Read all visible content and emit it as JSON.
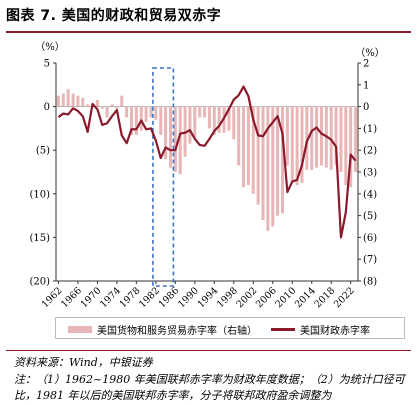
{
  "title": "图表 7. 美国的财政和贸易双赤字",
  "source": "资料来源：Wind，中银证券",
  "note": "注：（1）1962~1980 年美国联邦赤字率为财政年度数据；（2）为统计口径可比，1981 年以后的美国联邦赤字率，分子将联邦政府盈余调整为",
  "colors": {
    "bars": "#e8b6b6",
    "line": "#8b1a2b",
    "highlight": "#3d73c4",
    "rule": "#8b1a2b"
  },
  "chart_data": {
    "type": "bar+line",
    "left_axis": {
      "unit_label": "（%）",
      "ylim": [
        -20,
        5
      ],
      "ticks": [
        "5",
        "0",
        "(5)",
        "(10)",
        "(15)",
        "(20)"
      ]
    },
    "right_axis": {
      "unit_label": "（%）",
      "ylim": [
        -8,
        2
      ],
      "ticks": [
        "2",
        "1",
        "0",
        "(1)",
        "(2)",
        "(3)",
        "(4)",
        "(5)",
        "(6)",
        "(7)",
        "(8)"
      ]
    },
    "x_tick_labels": [
      "1962",
      "1966",
      "1970",
      "1974",
      "1978",
      "1982",
      "1986",
      "1990",
      "1994",
      "1998",
      "2002",
      "2006",
      "2010",
      "2014",
      "2018",
      "2022"
    ],
    "highlight_range": [
      1982,
      1985
    ],
    "legend": [
      "美国货物和服务贸易赤字率（右轴）",
      "美国财政赤字率"
    ],
    "x": [
      1962,
      1963,
      1964,
      1965,
      1966,
      1967,
      1968,
      1969,
      1970,
      1971,
      1972,
      1973,
      1974,
      1975,
      1976,
      1977,
      1978,
      1979,
      1980,
      1981,
      1982,
      1983,
      1984,
      1985,
      1986,
      1987,
      1988,
      1989,
      1990,
      1991,
      1992,
      1993,
      1994,
      1995,
      1996,
      1997,
      1998,
      1999,
      2000,
      2001,
      2002,
      2003,
      2004,
      2005,
      2006,
      2007,
      2008,
      2009,
      2010,
      2011,
      2012,
      2013,
      2014,
      2015,
      2016,
      2017,
      2018,
      2019,
      2020,
      2021,
      2022,
      2023
    ],
    "series": [
      {
        "name": "美国货物和服务贸易赤字率（右轴）",
        "axis": "right",
        "values": [
          0.5,
          0.6,
          0.8,
          0.6,
          0.5,
          0.4,
          0.1,
          0.1,
          0.3,
          -0.1,
          -0.5,
          0.1,
          -0.1,
          0.5,
          -0.5,
          -1.3,
          -1.3,
          -1.1,
          -0.7,
          -0.5,
          -0.6,
          -1.3,
          -2.4,
          -2.8,
          -3.0,
          -3.1,
          -2.3,
          -1.7,
          -1.4,
          -0.5,
          -0.5,
          -1.0,
          -1.3,
          -1.2,
          -1.2,
          -1.1,
          -1.5,
          -2.7,
          -3.7,
          -3.6,
          -4.0,
          -4.5,
          -5.2,
          -5.7,
          -5.5,
          -5.0,
          -4.9,
          -2.7,
          -3.4,
          -3.6,
          -3.5,
          -2.9,
          -2.9,
          -2.8,
          -2.7,
          -2.8,
          -2.9,
          -2.7,
          -3.0,
          -3.6,
          -3.7,
          -3.0
        ]
      },
      {
        "name": "美国财政赤字率",
        "axis": "left",
        "values": [
          -1.2,
          -0.8,
          -0.9,
          -0.2,
          -0.5,
          -1.1,
          -2.9,
          0.3,
          -0.3,
          -2.1,
          -1.9,
          -1.1,
          -0.4,
          -3.3,
          -4.2,
          -2.6,
          -2.6,
          -1.6,
          -2.6,
          -2.5,
          -3.9,
          -5.9,
          -4.7,
          -5.0,
          -5.0,
          -3.1,
          -3.0,
          -2.7,
          -3.7,
          -4.4,
          -4.5,
          -3.7,
          -2.8,
          -2.2,
          -1.3,
          -0.3,
          0.8,
          1.3,
          2.3,
          1.2,
          -1.5,
          -3.3,
          -3.4,
          -2.5,
          -1.8,
          -1.1,
          -3.1,
          -9.8,
          -8.6,
          -8.4,
          -6.7,
          -4.0,
          -2.8,
          -2.4,
          -3.1,
          -3.4,
          -3.8,
          -4.6,
          -15.0,
          -12.1,
          -5.5,
          -6.2
        ]
      }
    ]
  }
}
